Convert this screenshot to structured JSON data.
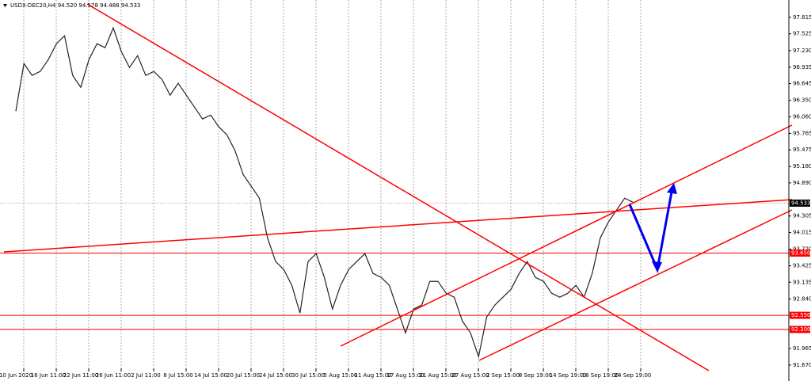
{
  "chart_data": {
    "type": "line",
    "title": "USDX-DEC20,H4  94.520 94.578 94.488 94.533",
    "categories": [
      "10 Jun 2020",
      null,
      null,
      null,
      "16 Jun 11:00",
      null,
      null,
      null,
      "22 Jun 11:00",
      null,
      null,
      null,
      "26 Jun 11:00",
      null,
      null,
      null,
      "2 Jul 11:00",
      null,
      null,
      null,
      "8 Jul 15:00",
      null,
      null,
      null,
      "14 Jul 15:00",
      null,
      null,
      null,
      "20 Jul 15:00",
      null,
      null,
      null,
      "24 Jul 15:00",
      null,
      null,
      null,
      "30 Jul 15:00",
      null,
      null,
      null,
      "5 Aug 15:00",
      null,
      null,
      null,
      "11 Aug 15:00",
      null,
      null,
      null,
      "17 Aug 15:00",
      null,
      null,
      null,
      "21 Aug 15:00",
      null,
      null,
      null,
      "27 Aug 15:00",
      null,
      null,
      null,
      "2 Sep 15:00",
      null,
      null,
      null,
      "8 Sep 19:00",
      null,
      null,
      null,
      "14 Sep 19:00",
      null,
      null,
      null,
      "18 Sep 19:00",
      null,
      null,
      null,
      "24 Sep 19:00"
    ],
    "series": [
      {
        "name": "USDX-DEC20,H4",
        "color": "#222222",
        "values": [
          96.16,
          97.0,
          96.79,
          96.86,
          97.07,
          97.35,
          97.49,
          96.79,
          96.58,
          97.07,
          97.35,
          97.28,
          97.63,
          97.21,
          96.93,
          97.14,
          96.79,
          96.86,
          96.72,
          96.44,
          96.65,
          96.44,
          96.23,
          96.02,
          96.09,
          95.88,
          95.74,
          95.46,
          95.04,
          94.83,
          94.62,
          93.92,
          93.5,
          93.36,
          93.08,
          92.59,
          93.5,
          93.64,
          93.22,
          92.66,
          93.08,
          93.36,
          93.5,
          93.64,
          93.29,
          93.22,
          93.08,
          92.66,
          92.24,
          92.66,
          92.73,
          93.15,
          93.15,
          92.94,
          92.87,
          92.45,
          92.24,
          91.82,
          92.52,
          92.73,
          92.87,
          93.01,
          93.29,
          93.5,
          93.22,
          93.15,
          92.94,
          92.87,
          92.94,
          93.08,
          92.87,
          93.29,
          93.92,
          94.2,
          94.41,
          94.62,
          94.55
        ]
      }
    ],
    "ylim": [
      91.389,
      98.123
    ],
    "yticks": [
      97.815,
      97.525,
      {
        "value": 97.23,
        "label": "97.230"
      },
      96.935,
      96.645,
      {
        "value": 96.35,
        "label": "96.350"
      },
      {
        "value": 96.06,
        "label": "96.060"
      },
      95.765,
      95.475,
      {
        "value": 95.18,
        "label": "95.180"
      },
      {
        "value": 94.89,
        "label": "94.890"
      },
      94.305,
      94.015,
      {
        "value": 93.72,
        "label": "93.720"
      },
      93.425,
      93.135,
      {
        "value": 92.84,
        "label": "92.840"
      },
      91.965,
      {
        "value": 91.67,
        "label": "91.670"
      }
    ],
    "levels": [
      {
        "value": 93.65,
        "label": "93.650",
        "color": "#ff0000"
      },
      {
        "value": 92.55,
        "label": "92.550",
        "color": "#ff0000"
      },
      {
        "value": 92.3,
        "label": "92.300",
        "color": "#ff0000"
      }
    ],
    "current_price": 94.533,
    "grid": true
  }
}
